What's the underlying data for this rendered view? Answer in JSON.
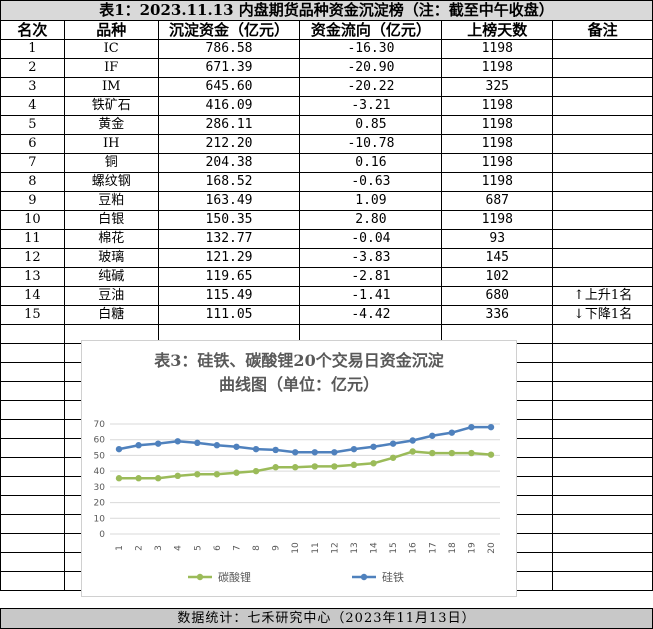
{
  "title": "表1：2023.11.13 内盘期货品种资金沉淀榜（注：截至中午收盘）",
  "headers": [
    "名次",
    "品种",
    "沉淀资金（亿元）",
    "资金流向（亿元）",
    "上榜天数",
    "备注"
  ],
  "rows": [
    {
      "rank": "1",
      "name": "IC",
      "fund": "786.58",
      "flow": "-16.30",
      "days": "1198",
      "note": ""
    },
    {
      "rank": "2",
      "name": "IF",
      "fund": "671.39",
      "flow": "-20.90",
      "days": "1198",
      "note": ""
    },
    {
      "rank": "3",
      "name": "IM",
      "fund": "645.60",
      "flow": "-20.22",
      "days": "325",
      "note": ""
    },
    {
      "rank": "4",
      "name": "铁矿石",
      "fund": "416.09",
      "flow": "-3.21",
      "days": "1198",
      "note": ""
    },
    {
      "rank": "5",
      "name": "黄金",
      "fund": "286.11",
      "flow": "0.85",
      "days": "1198",
      "note": ""
    },
    {
      "rank": "6",
      "name": "IH",
      "fund": "212.20",
      "flow": "-10.78",
      "days": "1198",
      "note": ""
    },
    {
      "rank": "7",
      "name": "铜",
      "fund": "204.38",
      "flow": "0.16",
      "days": "1198",
      "note": ""
    },
    {
      "rank": "8",
      "name": "螺纹钢",
      "fund": "168.52",
      "flow": "-0.63",
      "days": "1198",
      "note": ""
    },
    {
      "rank": "9",
      "name": "豆粕",
      "fund": "163.49",
      "flow": "1.09",
      "days": "687",
      "note": ""
    },
    {
      "rank": "10",
      "name": "白银",
      "fund": "150.35",
      "flow": "2.80",
      "days": "1198",
      "note": ""
    },
    {
      "rank": "11",
      "name": "棉花",
      "fund": "132.77",
      "flow": "-0.04",
      "days": "93",
      "note": ""
    },
    {
      "rank": "12",
      "name": "玻璃",
      "fund": "121.29",
      "flow": "-3.83",
      "days": "145",
      "note": ""
    },
    {
      "rank": "13",
      "name": "纯碱",
      "fund": "119.65",
      "flow": "-2.81",
      "days": "102",
      "note": ""
    },
    {
      "rank": "14",
      "name": "豆油",
      "fund": "115.49",
      "flow": "-1.41",
      "days": "680",
      "note": "上升1名",
      "arrow": "↑"
    },
    {
      "rank": "15",
      "name": "白糖",
      "fund": "111.05",
      "flow": "-4.42",
      "days": "336",
      "note": "下降1名",
      "arrow": "↓"
    }
  ],
  "footer": "数据统计：七禾研究中心（2023年11月13日）",
  "chart_data": {
    "type": "line",
    "title_line1": "表3：硅铁、碳酸锂20个交易日资金沉淀",
    "title_line2": "曲线图（单位：亿元）",
    "categories": [
      "1",
      "2",
      "3",
      "4",
      "5",
      "6",
      "7",
      "8",
      "9",
      "10",
      "11",
      "12",
      "13",
      "14",
      "15",
      "16",
      "17",
      "18",
      "19",
      "20"
    ],
    "ylim": [
      0,
      70
    ],
    "yticks": [
      0,
      10,
      20,
      30,
      40,
      50,
      60,
      70
    ],
    "legend_position": "bottom",
    "series": [
      {
        "name": "碳酸锂",
        "color": "#9bbb59",
        "values": [
          35.5,
          35.5,
          35.5,
          37,
          38,
          38,
          39,
          40,
          42.5,
          42.5,
          43,
          43,
          44,
          45,
          48.5,
          52.5,
          51.5,
          51.5,
          51.5,
          50.5
        ]
      },
      {
        "name": "硅铁",
        "color": "#4f81bd",
        "values": [
          54,
          56.5,
          57.5,
          59,
          58,
          56.5,
          55.5,
          54,
          53.5,
          52,
          52,
          52,
          54,
          55.5,
          57.5,
          59.5,
          62.5,
          64.5,
          68,
          68
        ]
      }
    ]
  }
}
